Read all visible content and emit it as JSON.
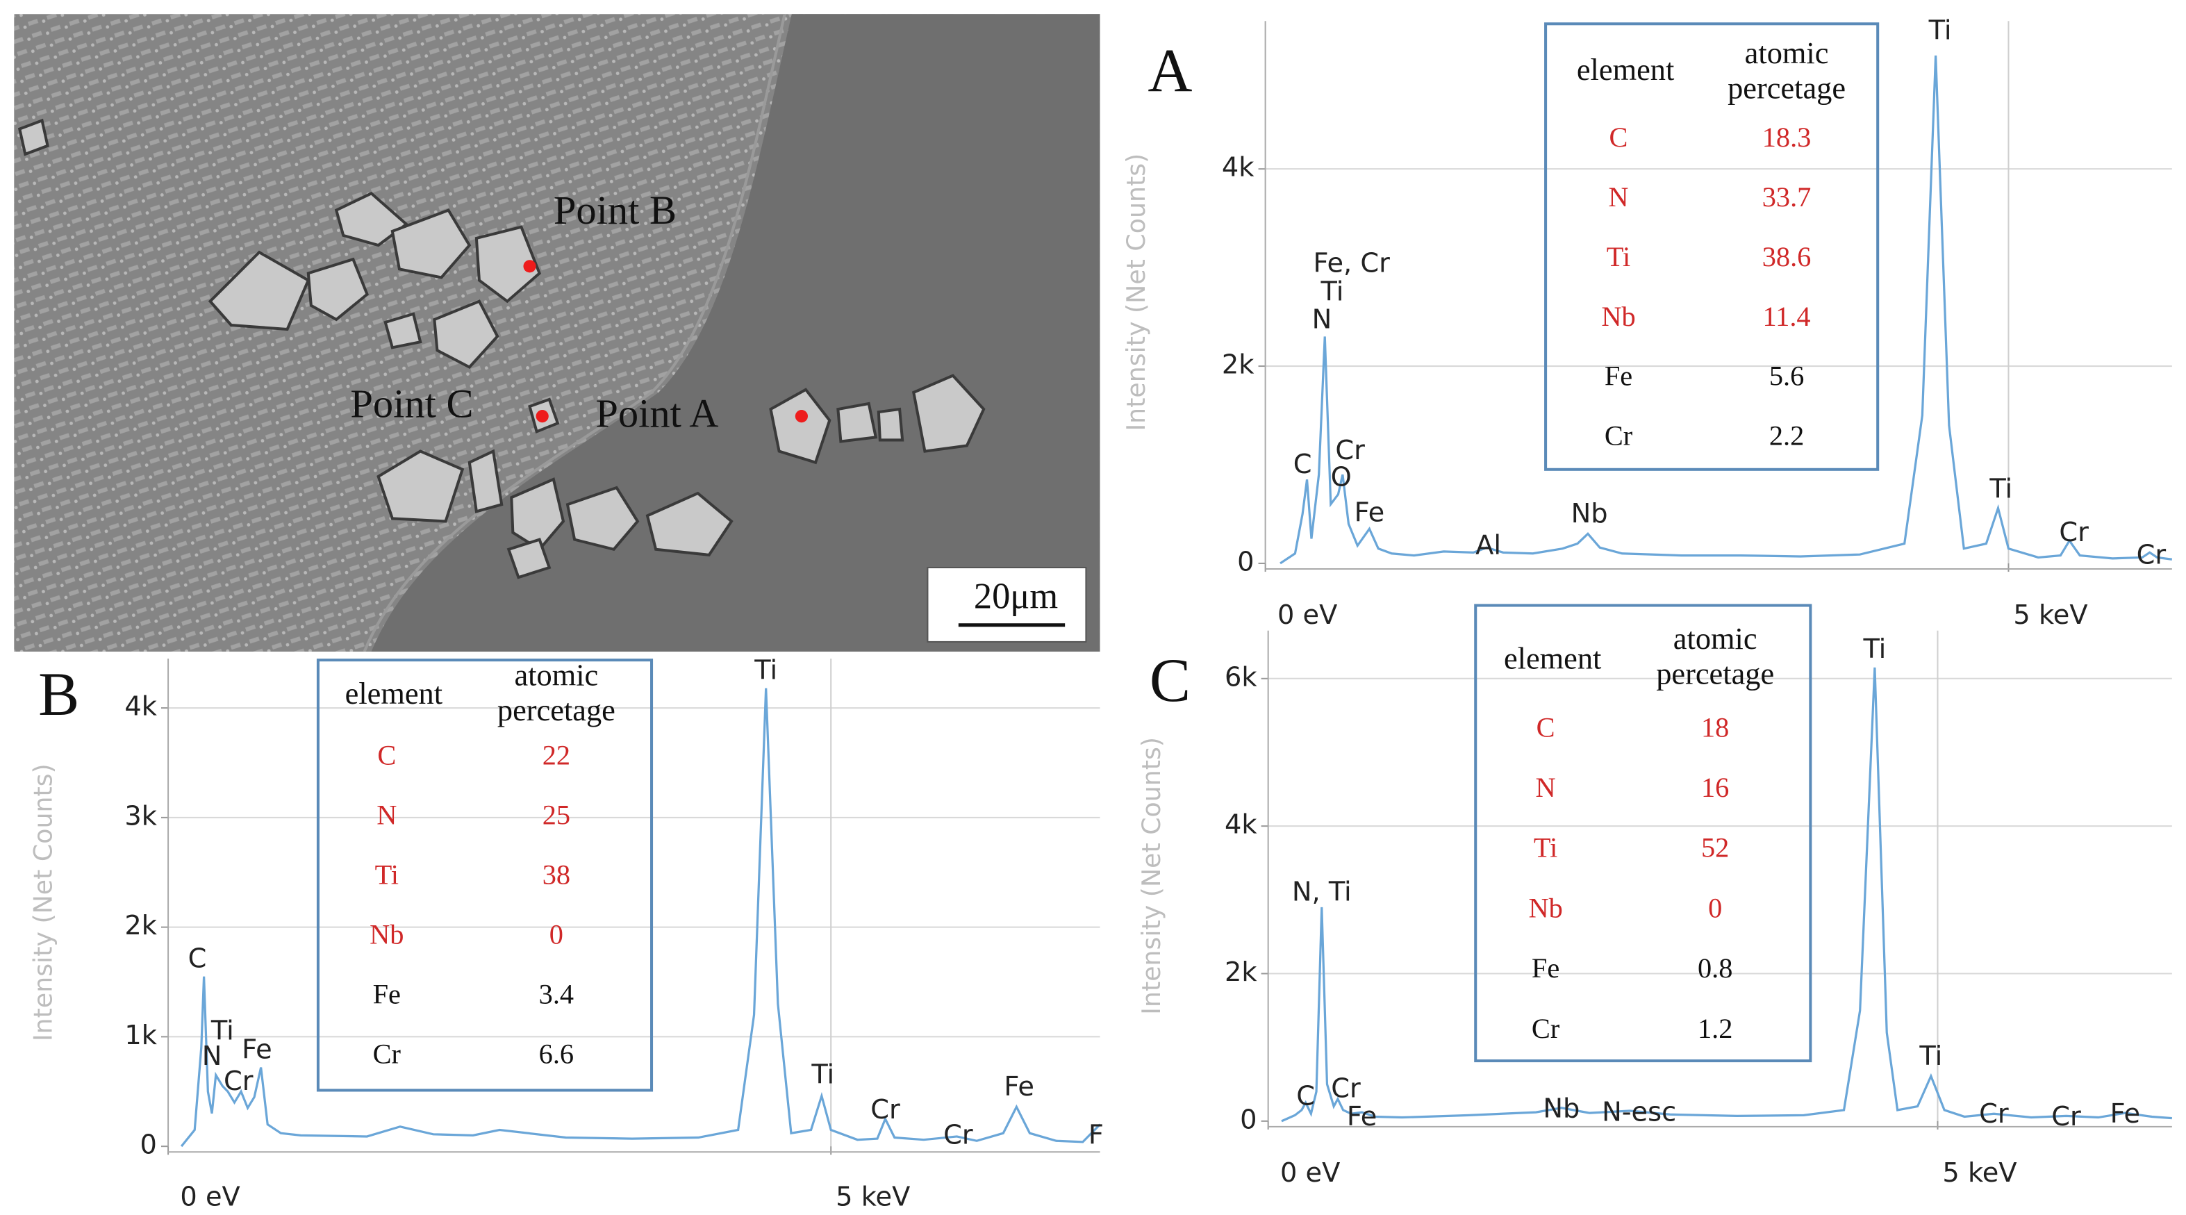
{
  "sem": {
    "points": [
      "Point B",
      "Point C",
      "Point A"
    ],
    "scale_bar": "20μm"
  },
  "chart_data": [
    {
      "type": "line",
      "title": "A",
      "y_label": "Intensity (Net Counts)",
      "color": "#6aa6d8",
      "grid": true,
      "xlim": [
        0,
        6.1
      ],
      "ylim": [
        0,
        5500
      ],
      "xticks": [
        {
          "value": 0,
          "label": "0 eV"
        },
        {
          "value": 5,
          "label": "5 keV"
        }
      ],
      "yticks": [
        0,
        {
          "value": 2000,
          "label": "2k"
        },
        {
          "value": 4000,
          "label": "4k"
        }
      ],
      "x": [
        0.1,
        0.2,
        0.25,
        0.28,
        0.31,
        0.36,
        0.4,
        0.44,
        0.49,
        0.52,
        0.56,
        0.62,
        0.7,
        0.76,
        0.85,
        1.0,
        1.2,
        1.4,
        1.49,
        1.6,
        1.8,
        2.0,
        2.1,
        2.17,
        2.25,
        2.4,
        2.8,
        3.2,
        3.6,
        4.0,
        4.3,
        4.42,
        4.51,
        4.6,
        4.7,
        4.85,
        4.93,
        5.0,
        5.2,
        5.35,
        5.41,
        5.48,
        5.7,
        5.9,
        5.95,
        6.0,
        6.1
      ],
      "values": [
        0,
        100,
        500,
        850,
        250,
        900,
        2300,
        600,
        700,
        900,
        400,
        180,
        350,
        150,
        100,
        80,
        120,
        110,
        160,
        110,
        100,
        150,
        200,
        300,
        160,
        100,
        80,
        80,
        70,
        90,
        200,
        1500,
        5150,
        1400,
        150,
        200,
        560,
        150,
        60,
        80,
        230,
        80,
        50,
        60,
        110,
        60,
        40
      ],
      "annotations": [
        {
          "text": "Fe, Cr",
          "x": 0.58,
          "y": 3030
        },
        {
          "text": "Ti",
          "x": 0.45,
          "y": 2740
        },
        {
          "text": "N",
          "x": 0.38,
          "y": 2460
        },
        {
          "text": "C",
          "x": 0.25,
          "y": 990
        },
        {
          "text": "Cr",
          "x": 0.57,
          "y": 1130
        },
        {
          "text": "O",
          "x": 0.51,
          "y": 860
        },
        {
          "text": "Fe",
          "x": 0.7,
          "y": 500
        },
        {
          "text": "Al",
          "x": 1.5,
          "y": 170
        },
        {
          "text": "Nb",
          "x": 2.18,
          "y": 490
        },
        {
          "text": "Ti",
          "x": 4.54,
          "y": 5390
        },
        {
          "text": "Ti",
          "x": 4.95,
          "y": 740
        },
        {
          "text": "Cr",
          "x": 5.44,
          "y": 300
        },
        {
          "text": "Cr",
          "x": 5.96,
          "y": 70
        }
      ],
      "table": {
        "header": [
          "element",
          [
            "atomic",
            "percetage"
          ]
        ],
        "rows": [
          [
            "C",
            18.3
          ],
          [
            "N",
            33.7
          ],
          [
            "Ti",
            38.6
          ],
          [
            "Nb",
            11.4
          ],
          [
            "Fe",
            5.6
          ],
          [
            "Cr",
            2.2
          ]
        ],
        "row_colors": [
          "#d02828",
          "#d02828",
          "#d02828",
          "#d02828",
          "#111111",
          "#111111"
        ]
      }
    },
    {
      "type": "line",
      "title": "B",
      "y_label": "Intensity (Net Counts)",
      "color": "#6aa6d8",
      "grid": true,
      "xlim": [
        0,
        7.03
      ],
      "ylim": [
        0,
        4450
      ],
      "xticks": [
        {
          "value": 0,
          "label": "0 eV"
        },
        {
          "value": 5,
          "label": "5 keV"
        }
      ],
      "yticks": [
        0,
        {
          "value": 1000,
          "label": "1k"
        },
        {
          "value": 2000,
          "label": "2k"
        },
        {
          "value": 3000,
          "label": "3k"
        },
        {
          "value": 4000,
          "label": "4k"
        }
      ],
      "x": [
        0.1,
        0.2,
        0.25,
        0.27,
        0.3,
        0.33,
        0.36,
        0.41,
        0.45,
        0.5,
        0.55,
        0.6,
        0.65,
        0.7,
        0.75,
        0.85,
        1.0,
        1.5,
        1.75,
        2.0,
        2.3,
        2.5,
        3.0,
        3.5,
        4.0,
        4.3,
        4.42,
        4.51,
        4.6,
        4.7,
        4.85,
        4.93,
        5.0,
        5.2,
        5.35,
        5.41,
        5.48,
        5.7,
        5.95,
        6.1,
        6.3,
        6.4,
        6.5,
        6.7,
        6.9,
        7.03
      ],
      "values": [
        0,
        150,
        900,
        1550,
        500,
        300,
        650,
        550,
        500,
        400,
        500,
        350,
        450,
        720,
        200,
        120,
        100,
        90,
        180,
        110,
        100,
        150,
        80,
        70,
        80,
        150,
        1200,
        4180,
        1300,
        120,
        150,
        460,
        150,
        60,
        70,
        250,
        80,
        60,
        90,
        50,
        120,
        360,
        120,
        50,
        40,
        200
      ],
      "annotations": [
        {
          "text": "C",
          "x": 0.22,
          "y": 1700
        },
        {
          "text": "Ti",
          "x": 0.41,
          "y": 1040
        },
        {
          "text": "N",
          "x": 0.33,
          "y": 810
        },
        {
          "text": "Cr",
          "x": 0.53,
          "y": 580
        },
        {
          "text": "Fe",
          "x": 0.67,
          "y": 870
        },
        {
          "text": "Ti",
          "x": 4.51,
          "y": 4330
        },
        {
          "text": "Ti",
          "x": 4.94,
          "y": 640
        },
        {
          "text": "Cr",
          "x": 5.41,
          "y": 320
        },
        {
          "text": "Cr",
          "x": 5.96,
          "y": 90
        },
        {
          "text": "Fe",
          "x": 6.42,
          "y": 530
        },
        {
          "text": "F",
          "x": 7.0,
          "y": 90
        }
      ],
      "table": {
        "header": [
          "element",
          [
            "atomic",
            "percetage"
          ]
        ],
        "rows": [
          [
            "C",
            22
          ],
          [
            "N",
            25
          ],
          [
            "Ti",
            38
          ],
          [
            "Nb",
            0
          ],
          [
            "Fe",
            3.4
          ],
          [
            "Cr",
            6.6
          ]
        ],
        "row_colors": [
          "#d02828",
          "#d02828",
          "#d02828",
          "#d02828",
          "#111111",
          "#111111"
        ]
      }
    },
    {
      "type": "line",
      "title": "C",
      "y_label": "Intensity (Net Counts)",
      "color": "#6aa6d8",
      "grid": true,
      "xlim": [
        0,
        6.75
      ],
      "ylim": [
        0,
        6650
      ],
      "xticks": [
        {
          "value": 0,
          "label": "0 eV"
        },
        {
          "value": 5,
          "label": "5 keV"
        }
      ],
      "yticks": [
        0,
        {
          "value": 2000,
          "label": "2k"
        },
        {
          "value": 4000,
          "label": "4k"
        },
        {
          "value": 6000,
          "label": "6k"
        }
      ],
      "x": [
        0.1,
        0.2,
        0.25,
        0.28,
        0.32,
        0.36,
        0.4,
        0.44,
        0.49,
        0.52,
        0.56,
        0.62,
        0.7,
        0.8,
        1.0,
        1.5,
        2.0,
        2.19,
        2.4,
        2.7,
        3.0,
        3.5,
        4.0,
        4.3,
        4.42,
        4.53,
        4.62,
        4.7,
        4.85,
        4.95,
        5.05,
        5.2,
        5.42,
        5.7,
        5.96,
        6.2,
        6.4,
        6.6,
        6.75
      ],
      "values": [
        0,
        80,
        150,
        250,
        100,
        400,
        2900,
        500,
        200,
        300,
        150,
        100,
        120,
        60,
        50,
        80,
        120,
        180,
        110,
        140,
        90,
        70,
        80,
        150,
        1500,
        6150,
        1200,
        150,
        200,
        610,
        150,
        60,
        100,
        50,
        70,
        50,
        110,
        60,
        40
      ],
      "annotations": [
        {
          "text": "N, Ti",
          "x": 0.4,
          "y": 3090
        },
        {
          "text": "C",
          "x": 0.28,
          "y": 320
        },
        {
          "text": "Cr",
          "x": 0.58,
          "y": 420
        },
        {
          "text": "Fe",
          "x": 0.7,
          "y": 40
        },
        {
          "text": "Nb",
          "x": 2.19,
          "y": 150
        },
        {
          "text": "N-esc",
          "x": 2.77,
          "y": 100
        },
        {
          "text": "Ti",
          "x": 4.53,
          "y": 6380
        },
        {
          "text": "Ti",
          "x": 4.95,
          "y": 860
        },
        {
          "text": "Cr",
          "x": 5.42,
          "y": 80
        },
        {
          "text": "Cr",
          "x": 5.96,
          "y": 40
        },
        {
          "text": "Fe",
          "x": 6.4,
          "y": 80
        }
      ],
      "table": {
        "header": [
          "element",
          [
            "atomic",
            "percetage"
          ]
        ],
        "rows": [
          [
            "C",
            18
          ],
          [
            "N",
            16
          ],
          [
            "Ti",
            52
          ],
          [
            "Nb",
            0
          ],
          [
            "Fe",
            0.8
          ],
          [
            "Cr",
            1.2
          ]
        ],
        "row_colors": [
          "#d02828",
          "#d02828",
          "#d02828",
          "#d02828",
          "#111111",
          "#111111"
        ]
      }
    }
  ]
}
